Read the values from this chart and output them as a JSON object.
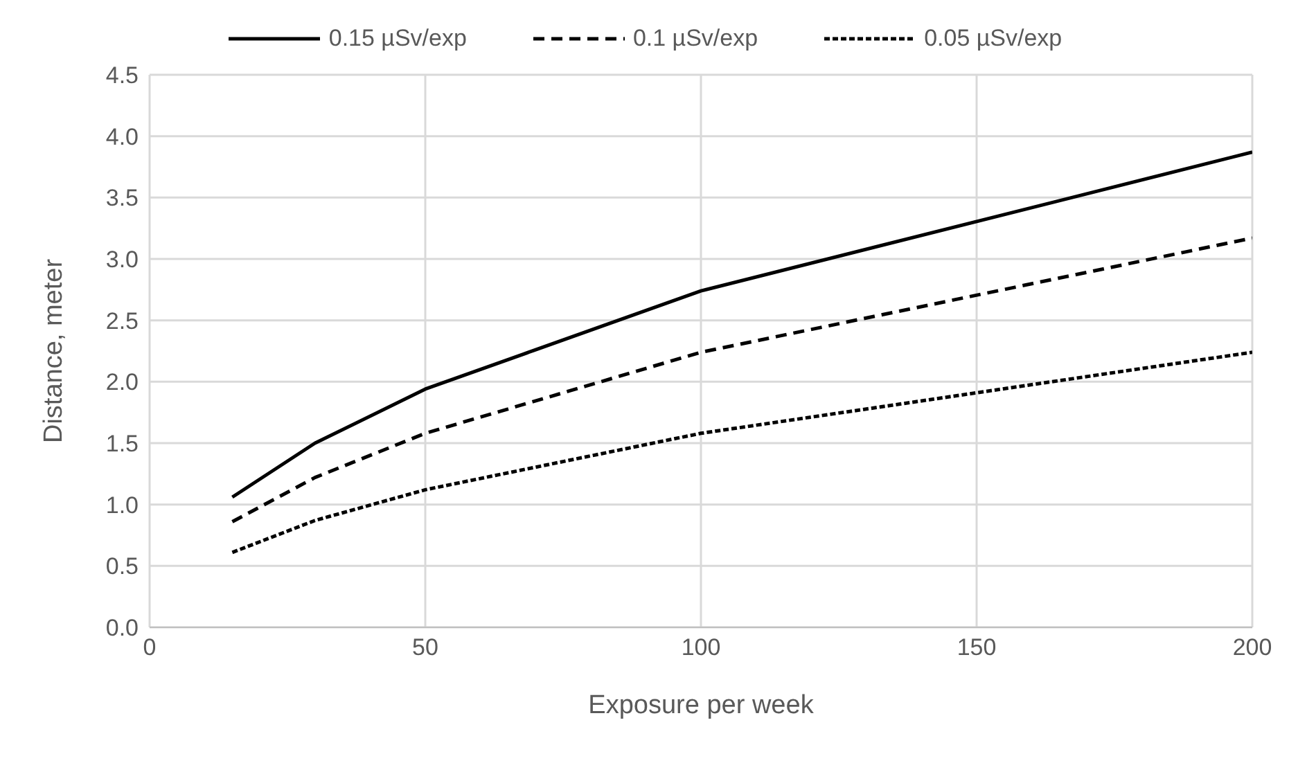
{
  "chart_data": {
    "type": "line",
    "xlabel": "Exposure per week",
    "ylabel": "Distance, meter",
    "x": [
      15,
      30,
      50,
      100,
      200
    ],
    "series": [
      {
        "name": "0.15 µSv/exp",
        "color": "#000000",
        "line_style": "solid",
        "values": [
          1.06,
          1.5,
          1.94,
          2.74,
          3.87
        ]
      },
      {
        "name": "0.1 µSv/exp",
        "color": "#000000",
        "line_style": "dashed",
        "values": [
          0.86,
          1.22,
          1.58,
          2.24,
          3.17
        ]
      },
      {
        "name": "0.05 µSv/exp",
        "color": "#000000",
        "line_style": "dotted",
        "values": [
          0.61,
          0.87,
          1.12,
          1.58,
          2.24
        ]
      }
    ],
    "xlim": [
      0,
      200
    ],
    "xticks": [
      0,
      50,
      100,
      150,
      200
    ],
    "ylim": [
      0,
      4.5
    ],
    "yticks": [
      {
        "value": 0,
        "label": "0.0"
      },
      0.5,
      {
        "value": 1,
        "label": "1.0"
      },
      1.5,
      {
        "value": 2,
        "label": "2.0"
      },
      2.5,
      {
        "value": 3,
        "label": "3.0"
      },
      3.5,
      {
        "value": 4,
        "label": "4.0"
      },
      4.5
    ],
    "grid": true,
    "legend": "top",
    "marker": "none"
  }
}
